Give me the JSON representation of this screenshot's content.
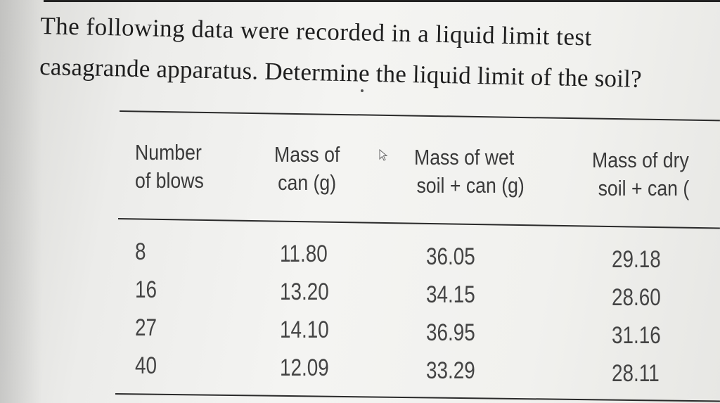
{
  "question": {
    "line1": "The following data were recorded in a liquid limit test",
    "line2": "casagrande apparatus. Determine the liquid limit of the soil?"
  },
  "table": {
    "headers": [
      {
        "line1": "Number",
        "line2": "of blows"
      },
      {
        "line1": "Mass of",
        "line2": "can (g)"
      },
      {
        "line1": "Mass of wet",
        "line2": "soil + can (g)"
      },
      {
        "line1": "Mass of dry",
        "line2": "soil + can ("
      }
    ],
    "columns": {
      "blows": [
        "8",
        "16",
        "27",
        "40"
      ],
      "mass_can": [
        "11.80",
        "13.20",
        "14.10",
        "12.09"
      ],
      "mass_wet": [
        "36.05",
        "34.15",
        "36.95",
        "33.29"
      ],
      "mass_dry": [
        "29.18",
        "28.60",
        "31.16",
        "28.11"
      ]
    }
  },
  "icons": {
    "cursor": "mouse-pointer-icon"
  }
}
